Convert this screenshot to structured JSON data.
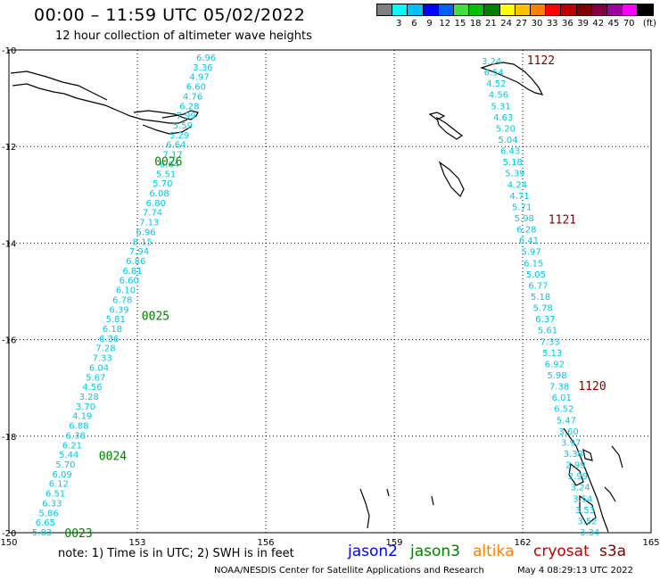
{
  "header": {
    "title": "00:00 – 11:59 UTC 05/02/2022",
    "subtitle": "12 hour collection of altimeter wave heights"
  },
  "legend": {
    "unit": "(ft)",
    "colors": [
      "#808080",
      "#00ffff",
      "#00c0ff",
      "#0000ff",
      "#0060ff",
      "#40e040",
      "#00c000",
      "#008000",
      "#ffff00",
      "#ffc000",
      "#ff8000",
      "#ff0000",
      "#c00000",
      "#800000",
      "#800040",
      "#a000a0",
      "#ff00ff",
      "#000000"
    ],
    "labels": [
      "3",
      "6",
      "9",
      "12",
      "15",
      "18",
      "21",
      "24",
      "27",
      "30",
      "33",
      "36",
      "39",
      "42",
      "45",
      "70"
    ]
  },
  "axes": {
    "lon_ticks": [
      150,
      153,
      156,
      159,
      162,
      165
    ],
    "lon_labels": [
      "150",
      "153",
      "156",
      "159",
      "162",
      "165"
    ],
    "lat_ticks": [
      -10,
      -12,
      -14,
      -16,
      -18,
      -20
    ],
    "lat_labels": [
      "-10",
      "-12",
      "-14",
      "-16",
      "-18",
      "-20"
    ]
  },
  "tracks": [
    {
      "name": "west",
      "color": "#00c8e8",
      "labels": [
        "6.96",
        "3.36",
        "4.97",
        "6.60",
        "4.76",
        "6.28",
        "7.99",
        "5.59",
        "5.29",
        "6.64",
        "7.17",
        "6.64",
        "5.51",
        "5.70",
        "6.08",
        "6.80",
        "7.74",
        "7.13",
        "6.96",
        "8.15",
        "7.94",
        "6.86",
        "6.81",
        "6.60",
        "6.10",
        "6.78",
        "6.39",
        "5.81",
        "6.18",
        "6.36",
        "7.28",
        "7.33",
        "6.04",
        "5.67",
        "4.56",
        "3.28",
        "3.70",
        "4.19",
        "6.88",
        "6.38",
        "6.21",
        "5.44",
        "5.70",
        "6.09",
        "6.12",
        "6.51",
        "6.33",
        "5.86",
        "6.65",
        "5.83"
      ]
    },
    {
      "name": "east",
      "color": "#00c8e8",
      "labels": [
        "3.24",
        "6.54",
        "4.52",
        "4.56",
        "5.31",
        "4.63",
        "5.20",
        "5.04",
        "6.43",
        "5.18",
        "5.39",
        "4.24",
        "4.71",
        "5.71",
        "5.98",
        "6.28",
        "6.41",
        "5.97",
        "6.15",
        "5.05",
        "6.77",
        "5.18",
        "5.78",
        "6.37",
        "5.61",
        "7.33",
        "5.13",
        "6.92",
        "5.98",
        "7.38",
        "6.01",
        "6.52",
        "5.47",
        "3.60",
        "3.97",
        "3.38",
        "2.99",
        "2.99",
        "3.24",
        "3.54",
        "3.53",
        "3.52",
        "3.34"
      ]
    }
  ],
  "time_markers": [
    {
      "text": "0026",
      "color": "#008000",
      "lon": 153.4,
      "lat": -12.3
    },
    {
      "text": "0025",
      "color": "#008000",
      "lon": 153.1,
      "lat": -15.5
    },
    {
      "text": "0024",
      "color": "#008000",
      "lon": 152.1,
      "lat": -18.4
    },
    {
      "text": "0023",
      "color": "#008000",
      "lon": 151.3,
      "lat": -20.0
    },
    {
      "text": "1122",
      "color": "#800000",
      "lon": 162.1,
      "lat": -10.2
    },
    {
      "text": "1121",
      "color": "#800000",
      "lon": 162.6,
      "lat": -13.5
    },
    {
      "text": "1120",
      "color": "#800000",
      "lon": 163.3,
      "lat": -16.95
    }
  ],
  "footer": {
    "note": "note: 1) Time is in UTC; 2) SWH is in feet",
    "satellites": [
      {
        "name": "jason2",
        "color": "#0000ff"
      },
      {
        "name": "jason3",
        "color": "#008000"
      },
      {
        "name": "altika",
        "color": "#ff8000"
      },
      {
        "name": "cryosat",
        "color": "#c00000"
      },
      {
        "name": "s3a",
        "color": "#800000"
      }
    ],
    "credit": "NOAA/NESDIS Center for Satellite Applications and Research",
    "timestamp": "May  4 08:29:13 UTC 2022"
  }
}
